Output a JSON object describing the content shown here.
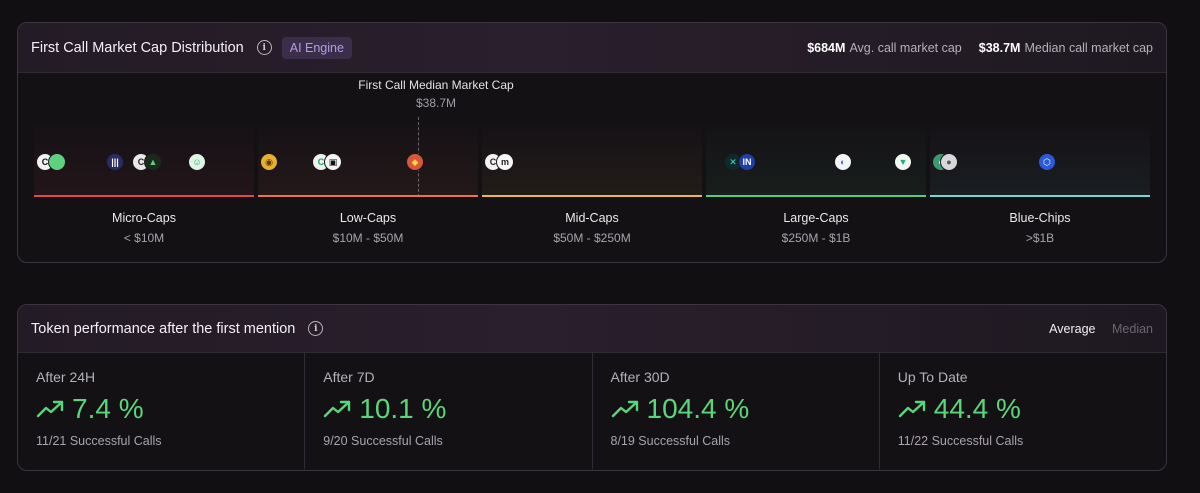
{
  "distribution": {
    "title": "First Call Market Cap Distribution",
    "info_icon": "info-icon",
    "badge": "AI Engine",
    "avg_value": "$684M",
    "avg_label": "Avg. call market cap",
    "median_value": "$38.7M",
    "median_label": "Median call market cap",
    "median_marker": {
      "title": "First Call Median Market Cap",
      "value": "$38.7M"
    },
    "segments": [
      {
        "name": "Micro-Caps",
        "range": "< $10M",
        "color": "#e0484c"
      },
      {
        "name": "Low-Caps",
        "range": "$10M - $50M",
        "color": "#e8734a"
      },
      {
        "name": "Mid-Caps",
        "range": "$50M - $250M",
        "color": "#e8b84a"
      },
      {
        "name": "Large-Caps",
        "range": "$250M - $1B",
        "color": "#4fcf7a"
      },
      {
        "name": "Blue-Chips",
        "range": ">$1B",
        "color": "#6fd9d2"
      }
    ]
  },
  "performance": {
    "title": "Token performance after the first mention",
    "toggle_average": "Average",
    "toggle_median": "Median",
    "trend_icon": "trending-up-icon",
    "cells": [
      {
        "label": "After 24H",
        "value": "7.4 %",
        "sub": "11/21 Successful Calls"
      },
      {
        "label": "After 7D",
        "value": "10.1 %",
        "sub": "9/20 Successful Calls"
      },
      {
        "label": "After 30D",
        "value": "104.4 %",
        "sub": "8/19 Successful Calls"
      },
      {
        "label": "Up To Date",
        "value": "44.4 %",
        "sub": "11/22 Successful Calls"
      }
    ],
    "accent_color": "#5ad67a"
  }
}
